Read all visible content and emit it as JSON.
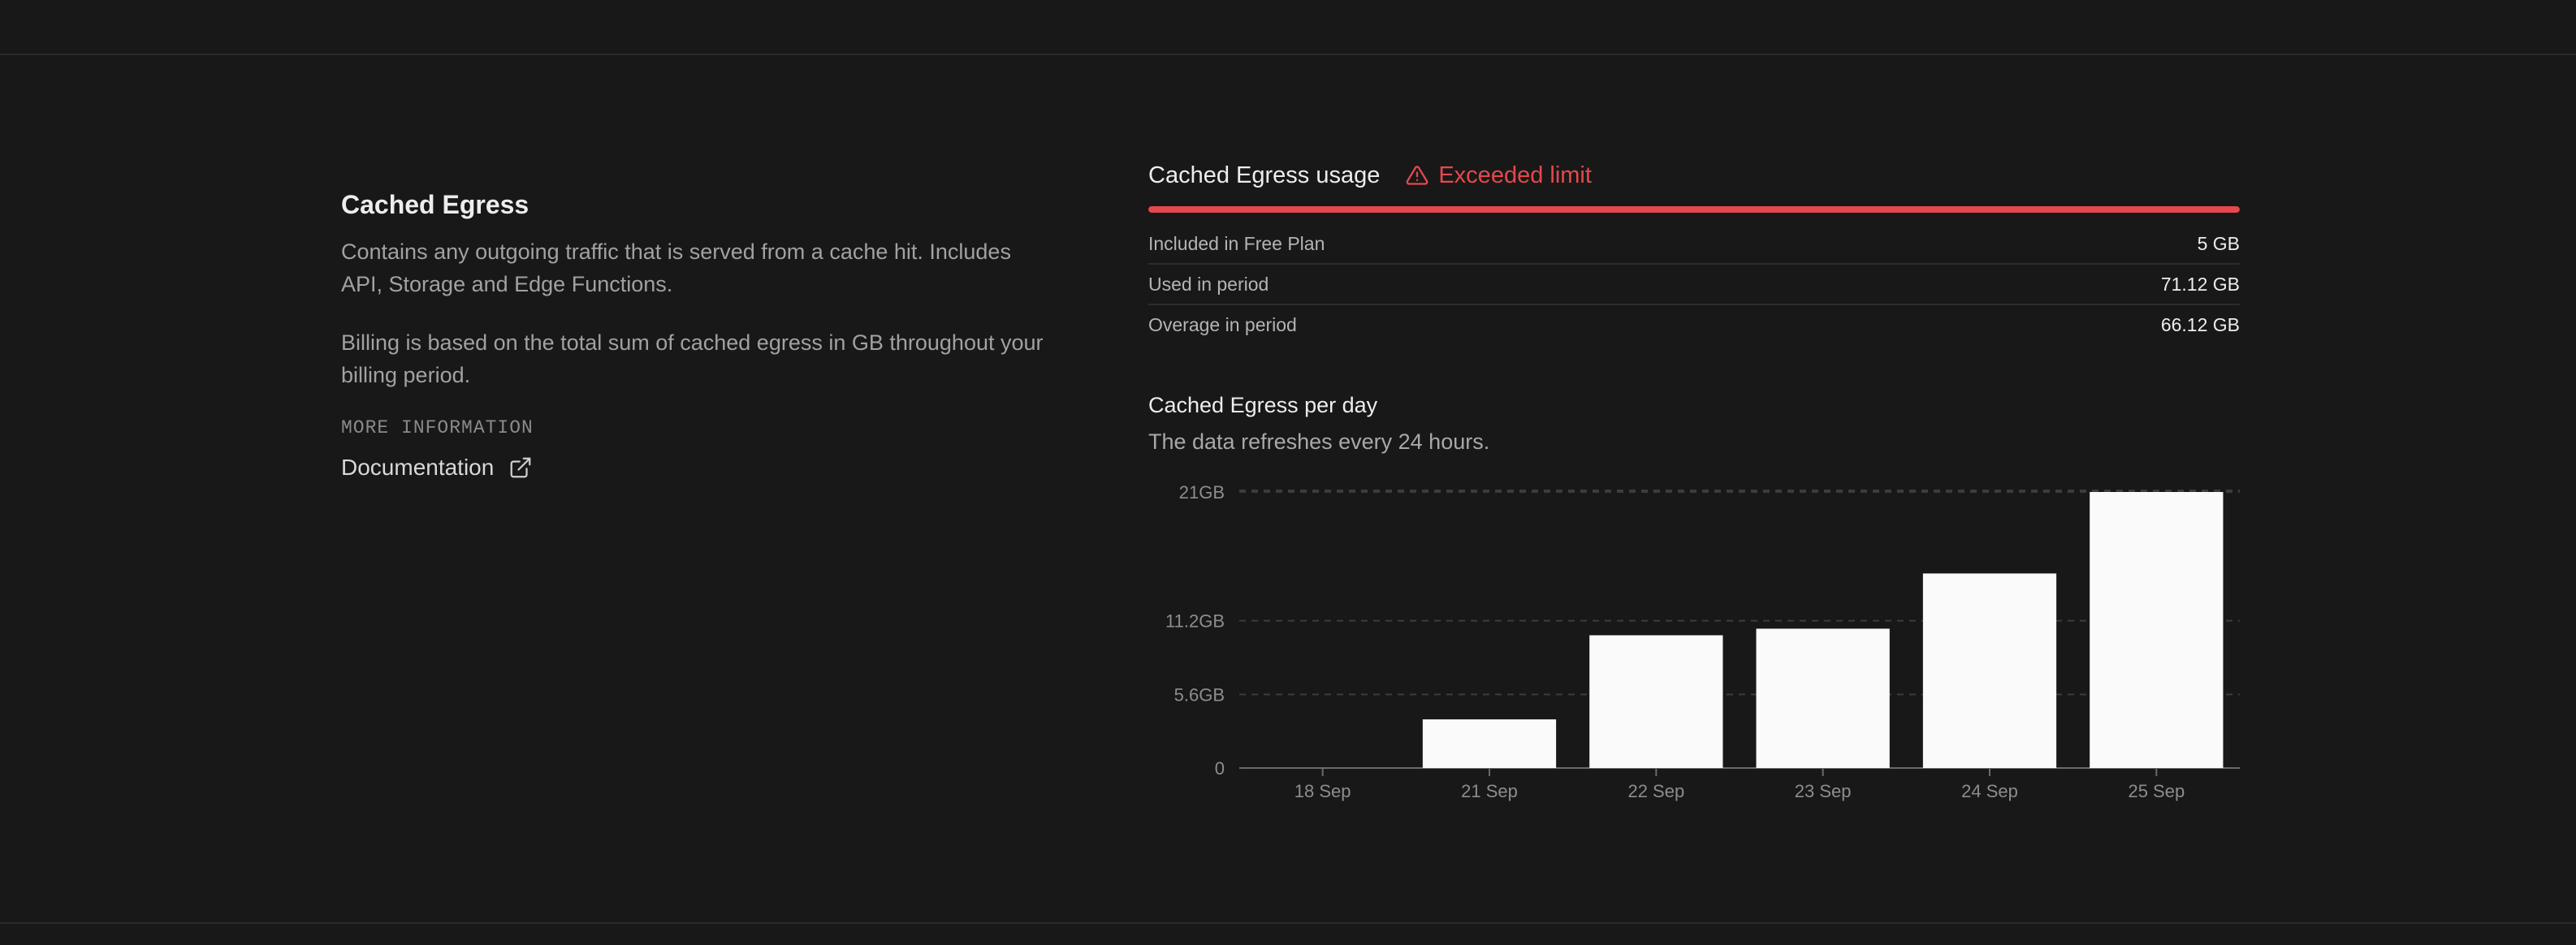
{
  "info": {
    "title": "Cached Egress",
    "description": "Contains any outgoing traffic that is served from a cache hit. Includes API, Storage and Edge Functions.",
    "billing_note": "Billing is based on the total sum of cached egress in GB throughout your billing period.",
    "more_info_label": "MORE INFORMATION",
    "documentation_link": "Documentation",
    "link_icon": "external-link-icon"
  },
  "usage": {
    "label": "Cached Egress usage",
    "status": "Exceeded limit",
    "status_icon": "warning-icon",
    "status_color": "#e5484d",
    "progress_percent": 100,
    "rows": [
      {
        "label": "Included in Free Plan",
        "value": "5 GB"
      },
      {
        "label": "Used in period",
        "value": "71.12 GB"
      },
      {
        "label": "Overage in period",
        "value": "66.12 GB"
      }
    ]
  },
  "chart": {
    "title": "Cached Egress per day",
    "subtitle": "The data refreshes every 24 hours."
  },
  "chart_data": {
    "type": "bar",
    "categories": [
      "18 Sep",
      "21 Sep",
      "22 Sep",
      "23 Sep",
      "24 Sep",
      "25 Sep"
    ],
    "values": [
      0,
      3.7,
      10.1,
      10.6,
      14.8,
      21
    ],
    "y_ticks": [
      {
        "value": 0,
        "label": "0"
      },
      {
        "value": 5.6,
        "label": "5.6GB"
      },
      {
        "value": 11.2,
        "label": "11.2GB"
      },
      {
        "value": 21,
        "label": "21GB"
      }
    ],
    "ylim": [
      0,
      21
    ],
    "grid": true,
    "bar_color": "#fafafa"
  }
}
